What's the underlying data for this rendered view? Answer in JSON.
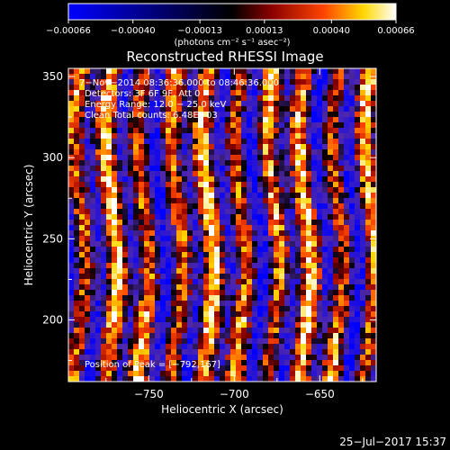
{
  "chart_data": {
    "type": "heatmap",
    "title": "Reconstructed RHESSI Image",
    "xlabel": "Heliocentric X (arcsec)",
    "ylabel": "Heliocentric Y (arcsec)",
    "xlim": [
      -797,
      -617
    ],
    "ylim": [
      162,
      355
    ],
    "x_ticks": [
      -750,
      -700,
      -650
    ],
    "x_tick_labels": [
      "−750",
      "−700",
      "−650"
    ],
    "y_ticks": [
      200,
      250,
      300,
      350
    ],
    "y_tick_labels": [
      "200",
      "250",
      "300",
      "350"
    ],
    "colorbar": {
      "min": -0.00066,
      "max": 0.00066,
      "ticks": [
        -0.00066,
        -0.0004,
        -0.00013,
        0.00013,
        0.0004,
        0.00066
      ],
      "tick_labels": [
        "−0.00066",
        "−0.00040",
        "−0.00013",
        "0.00013",
        "0.00040",
        "0.00066"
      ],
      "unit_label": "(photons cm⁻² s⁻¹ asec⁻²)",
      "colors": [
        "#0000ff",
        "#000000",
        "#8b0000",
        "#ff4500",
        "#ffd700",
        "#ffffff"
      ]
    },
    "annotations": [
      "7−Nov−2014 08:36:36.000 to 08:46:36.000",
      "Detectors: 3F 6F 9F, Att 0",
      "Energy Range: 12.0 − 25.0 keV",
      "Clean     Total counts: 6.48E+03"
    ],
    "peak_annotation": "Position of Peak = [−792,167]",
    "peak_position": [
      -792,
      167
    ],
    "grid": false,
    "legend": "none"
  },
  "footer": {
    "timestamp": "25−Jul−2017 15:37"
  }
}
